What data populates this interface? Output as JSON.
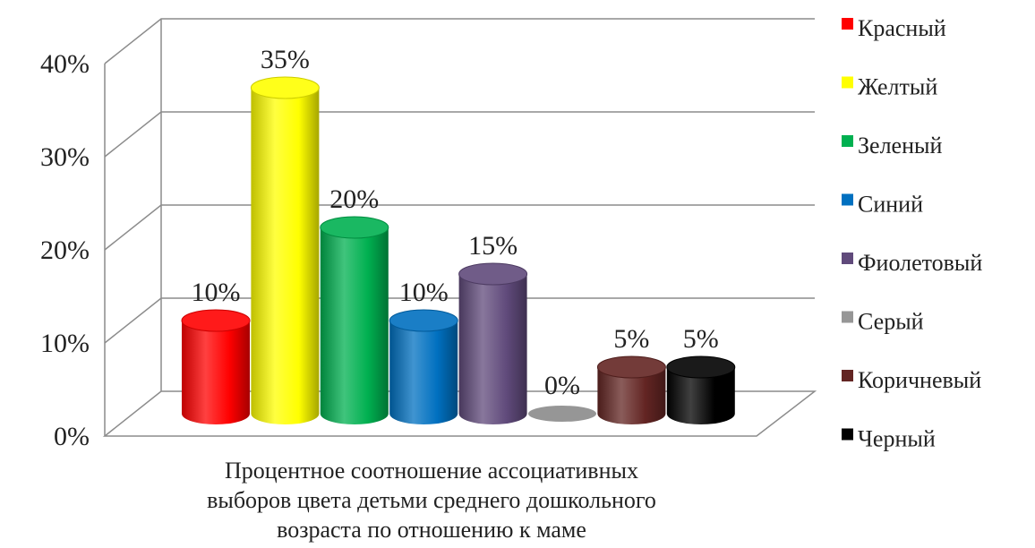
{
  "chart_data": {
    "type": "bar",
    "style": "3d-cylinder",
    "x_category_label": [
      "Процентное соотношение ассоциативных",
      "выборов цвета детьми среднего дошкольного",
      "возраста по отношению к маме"
    ],
    "ylim": [
      0,
      40
    ],
    "yticks": [
      "0%",
      "10%",
      "20%",
      "30%",
      "40%"
    ],
    "grid": true,
    "legend_position": "right",
    "series": [
      {
        "name": "Красный",
        "value": 10,
        "label": "10%",
        "color": "#ff0000"
      },
      {
        "name": "Желтый",
        "value": 35,
        "label": "35%",
        "color": "#ffff00"
      },
      {
        "name": "Зеленый",
        "value": 20,
        "label": "20%",
        "color": "#00b050"
      },
      {
        "name": "Синий",
        "value": 10,
        "label": "10%",
        "color": "#0070c0"
      },
      {
        "name": "Фиолетовый",
        "value": 15,
        "label": "15%",
        "color": "#604a7b"
      },
      {
        "name": "Серый",
        "value": 0,
        "label": "0%",
        "color": "#969696"
      },
      {
        "name": "Коричневый",
        "value": 5,
        "label": "5%",
        "color": "#632523"
      },
      {
        "name": "Черный",
        "value": 5,
        "label": "5%",
        "color": "#000000"
      }
    ]
  }
}
